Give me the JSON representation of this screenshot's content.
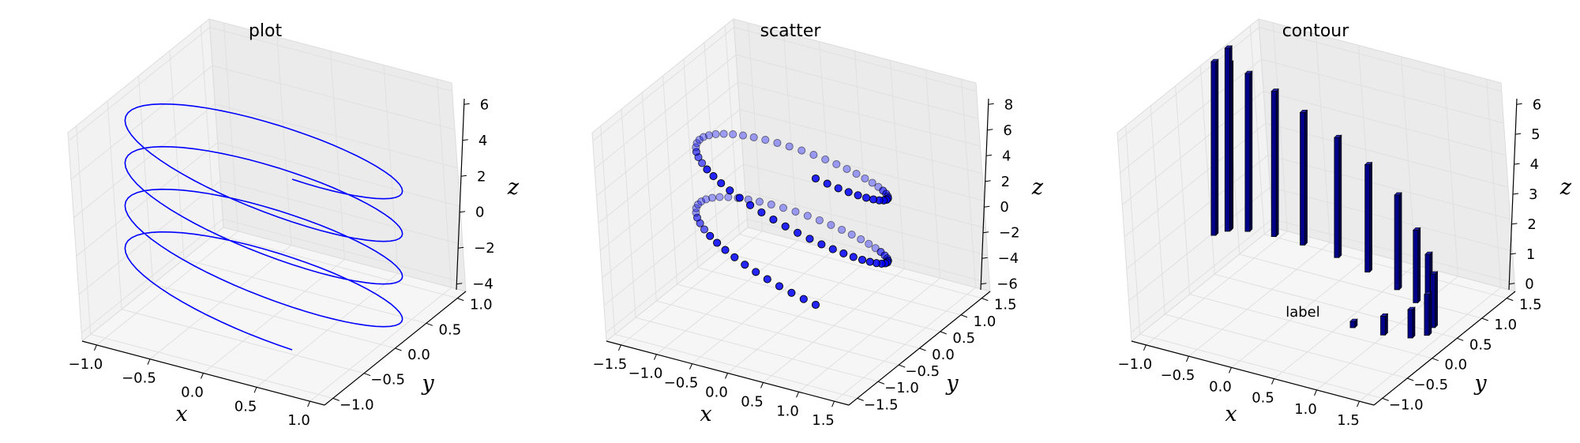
{
  "chart_data": [
    {
      "type": "line",
      "title": "plot",
      "xlabel": "x",
      "ylabel": "y",
      "zlabel": "z",
      "x_ticks": [
        "−1.0",
        "−0.5",
        "0.0",
        "0.5",
        "1.0"
      ],
      "y_ticks": [
        "−1.0",
        "−0.5",
        "0.0",
        "0.5",
        "1.0"
      ],
      "z_ticks": [
        "−4",
        "−2",
        "0",
        "2",
        "4",
        "6"
      ],
      "xlim": [
        -1.0,
        1.0
      ],
      "ylim": [
        -1.0,
        1.0
      ],
      "zlim": [
        -4,
        6
      ],
      "grid": true,
      "color": "#0000ff",
      "series": [
        {
          "t_range": [
            -4,
            4
          ],
          "x": [
            0.0,
            0.71,
            1.0,
            0.71,
            0.0,
            -0.71,
            -1.0,
            -0.71,
            0.0,
            0.71,
            1.0,
            0.71,
            0.0,
            -0.71,
            -1.0,
            -0.71,
            0.0
          ],
          "y": [
            -1.0,
            -0.71,
            0.0,
            0.71,
            1.0,
            0.71,
            0.0,
            -0.71,
            -1.0,
            -0.71,
            0.0,
            0.71,
            1.0,
            0.71,
            0.0,
            -0.71,
            -1.0
          ],
          "z": [
            -4,
            -3.5,
            -3,
            -2.5,
            -2,
            -1.5,
            -1,
            -0.5,
            0,
            0.5,
            1,
            1.5,
            2,
            2.5,
            3,
            3.5,
            4
          ]
        }
      ]
    },
    {
      "type": "scatter",
      "title": "scatter",
      "xlabel": "x",
      "ylabel": "y",
      "zlabel": "z",
      "x_ticks": [
        "−1.5",
        "−1.0",
        "−0.5",
        "0.0",
        "0.5",
        "1.0",
        "1.5"
      ],
      "y_ticks": [
        "−1.5",
        "−1.0",
        "−0.5",
        "0.0",
        "0.5",
        "1.0",
        "1.5"
      ],
      "z_ticks": [
        "−6",
        "−4",
        "−2",
        "0",
        "2",
        "4",
        "6",
        "8"
      ],
      "xlim": [
        -1.5,
        1.5
      ],
      "ylim": [
        -1.5,
        1.5
      ],
      "zlim": [
        -6,
        8
      ],
      "grid": true,
      "marker_color": "#0000ff",
      "series": [
        {
          "points": 100,
          "t_range": [
            -4,
            4
          ],
          "z_range": [
            -4,
            4
          ],
          "radius": 1.0,
          "turns": 2
        }
      ]
    },
    {
      "type": "bar",
      "title": "contour",
      "xlabel": "x",
      "ylabel": "y",
      "zlabel": "z",
      "x_ticks": [
        "−1.0",
        "−0.5",
        "0.0",
        "0.5",
        "1.0",
        "1.5"
      ],
      "y_ticks": [
        "−1.0",
        "−0.5",
        "0.0",
        "0.5",
        "1.0",
        "1.5"
      ],
      "z_ticks": [
        "0",
        "1",
        "2",
        "3",
        "4",
        "5",
        "6"
      ],
      "xlim": [
        -1.0,
        1.5
      ],
      "ylim": [
        -1.0,
        1.5
      ],
      "zlim": [
        0,
        6
      ],
      "grid": true,
      "bar_color": "#000088",
      "annotation": "label",
      "bars": [
        {
          "x": 0.0,
          "y": -1.0,
          "h": 0.2
        },
        {
          "x": 0.3,
          "y": -0.95,
          "h": 0.6
        },
        {
          "x": 0.6,
          "y": -0.8,
          "h": 0.9
        },
        {
          "x": 0.82,
          "y": -0.58,
          "h": 1.3
        },
        {
          "x": 0.96,
          "y": -0.3,
          "h": 1.7
        },
        {
          "x": 1.0,
          "y": 0.0,
          "h": 1.95
        },
        {
          "x": 0.97,
          "y": 0.28,
          "h": 2.3
        },
        {
          "x": 0.86,
          "y": 0.5,
          "h": 3.0
        },
        {
          "x": 0.66,
          "y": 0.76,
          "h": 3.4
        },
        {
          "x": 0.42,
          "y": 0.92,
          "h": 3.8
        },
        {
          "x": 0.12,
          "y": 0.99,
          "h": 4.2
        },
        {
          "x": -0.15,
          "y": 0.99,
          "h": 4.6
        },
        {
          "x": -0.42,
          "y": 0.91,
          "h": 5.0
        },
        {
          "x": -0.64,
          "y": 0.77,
          "h": 5.3
        },
        {
          "x": -0.66,
          "y": 0.74,
          "h": 5.8
        },
        {
          "x": -0.86,
          "y": 0.5,
          "h": 5.5
        }
      ]
    }
  ]
}
